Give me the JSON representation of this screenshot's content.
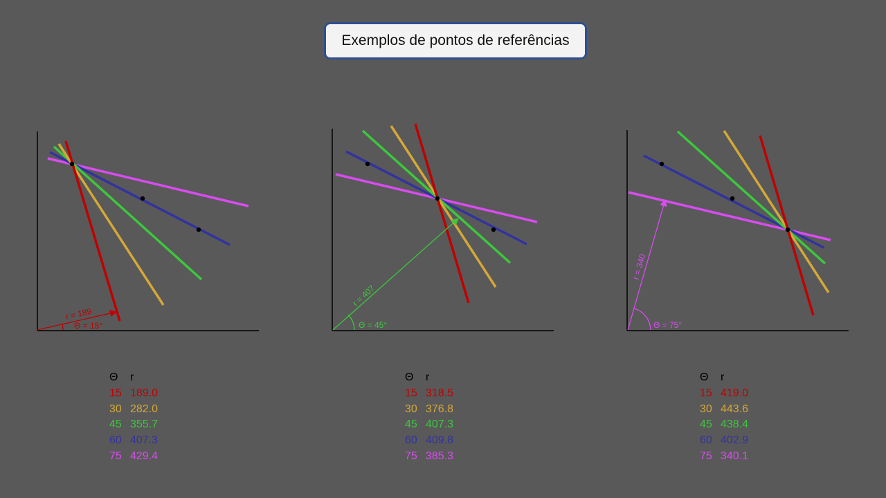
{
  "title": "Exemplos de pontos de referências",
  "colors": {
    "red": "#c00000",
    "yellow": "#d4a838",
    "green": "#3cc83c",
    "blue": "#3232a0",
    "magenta": "#d84cf0",
    "axis": "#000000"
  },
  "table_header": {
    "theta": "Θ",
    "r": "r"
  },
  "panels": [
    {
      "theta_label": "Θ = 15°",
      "r_label": "r = 189",
      "rows": [
        {
          "theta": "15",
          "r": "189.0",
          "color": "red"
        },
        {
          "theta": "30",
          "r": "282.0",
          "color": "yellow"
        },
        {
          "theta": "45",
          "r": "355.7",
          "color": "green"
        },
        {
          "theta": "60",
          "r": "407.3",
          "color": "blue"
        },
        {
          "theta": "75",
          "r": "429.4",
          "color": "magenta"
        }
      ]
    },
    {
      "theta_label": "Θ = 45°",
      "r_label": "r = 407",
      "rows": [
        {
          "theta": "15",
          "r": "318.5",
          "color": "red"
        },
        {
          "theta": "30",
          "r": "376.8",
          "color": "yellow"
        },
        {
          "theta": "45",
          "r": "407.3",
          "color": "green"
        },
        {
          "theta": "60",
          "r": "409.8",
          "color": "blue"
        },
        {
          "theta": "75",
          "r": "385.3",
          "color": "magenta"
        }
      ]
    },
    {
      "theta_label": "Θ = 75°",
      "r_label": "r = 340",
      "rows": [
        {
          "theta": "15",
          "r": "419.0",
          "color": "red"
        },
        {
          "theta": "30",
          "r": "443.6",
          "color": "yellow"
        },
        {
          "theta": "45",
          "r": "438.4",
          "color": "green"
        },
        {
          "theta": "60",
          "r": "402.9",
          "color": "blue"
        },
        {
          "theta": "75",
          "r": "340.1",
          "color": "magenta"
        }
      ]
    }
  ]
}
